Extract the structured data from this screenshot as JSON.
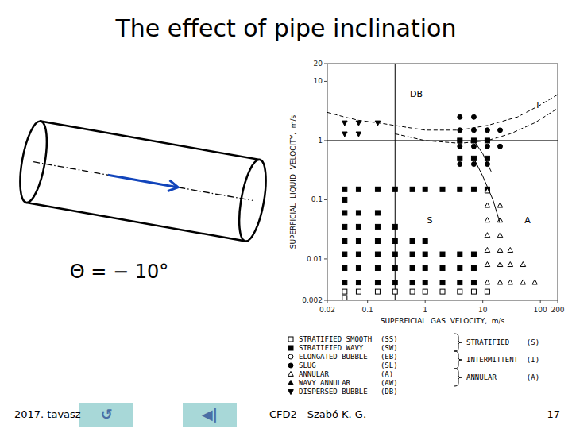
{
  "page": {
    "title": "The effect of pipe inclination",
    "theta_label": "Θ = − 10°",
    "footer_left": "2017. tavasz",
    "footer_center": "CFD2 - Szabó K. G.",
    "footer_right": "17",
    "background_color": "#ffffff",
    "buttons": [
      {
        "label": "↺",
        "color": "#a8d8d8"
      },
      {
        "label": "◀|",
        "color": "#a8d8d8"
      }
    ],
    "button_text_color": "#4a6fa5"
  },
  "chart_data": {
    "type": "scatter",
    "log": true,
    "grid": false,
    "color": "#000000",
    "x_label": "SUPERFICIAL  GAS  VELOCITY,  m/s",
    "y_label": "SUPERFICIAL  LIQUID  VELOCITY,  m/s",
    "xlim": [
      0.02,
      200
    ],
    "ylim": [
      0.002,
      20
    ],
    "xticks": [
      0.02,
      0.1,
      1,
      10,
      100,
      200
    ],
    "yticks": [
      0.002,
      0.01,
      0.1,
      1,
      10,
      20
    ],
    "hlines": [
      1
    ],
    "vlines": [
      0.3
    ],
    "annotations": [
      {
        "text": "DB",
        "x": 0.7,
        "y": 5.5
      },
      {
        "text": "S",
        "x": 1.2,
        "y": 0.04
      },
      {
        "text": "A",
        "x": 60,
        "y": 0.04
      },
      {
        "text": "I",
        "x": 90,
        "y": 3.5
      }
    ],
    "legend_groups": [
      {
        "text": "STRATIFIED    (S)",
        "series": [
          0,
          1
        ]
      },
      {
        "text": "INTERMITTENT  (I)",
        "series": [
          2,
          3
        ]
      },
      {
        "text": "ANNULAR       (A)",
        "series": [
          4,
          5
        ]
      }
    ],
    "series": [
      {
        "name": "STRATIFIED SMOOTH  (SS)",
        "type": "scatter",
        "marker": "square-open",
        "x": [
          0.04,
          0.07,
          0.15,
          0.3,
          0.6,
          1.0,
          2.0,
          4.0,
          7.0,
          12.0,
          0.04
        ],
        "values": [
          0.0028,
          0.0028,
          0.0028,
          0.0028,
          0.0028,
          0.0028,
          0.0028,
          0.0028,
          0.0028,
          0.0028,
          0.0022
        ]
      },
      {
        "name": "STRATIFIED WAVY    (SW)",
        "type": "scatter",
        "marker": "square",
        "x": [
          0.04,
          0.04,
          0.04,
          0.04,
          0.04,
          0.04,
          0.04,
          0.07,
          0.07,
          0.07,
          0.07,
          0.07,
          0.07,
          0.15,
          0.15,
          0.15,
          0.15,
          0.15,
          0.15,
          0.3,
          0.3,
          0.3,
          0.3,
          0.3,
          0.6,
          0.6,
          0.6,
          0.6,
          1.0,
          1.0,
          1.0,
          1.0,
          2.0,
          2.0,
          2.0,
          4.0,
          4.0,
          4.0,
          7.0,
          7.0,
          7.0,
          0.04,
          0.07,
          0.15,
          0.3,
          0.6,
          1.0,
          2.0,
          4.0,
          7.0,
          12.0,
          4.0,
          7.0,
          12.0,
          4.0,
          7.0,
          12.0
        ],
        "values": [
          0.004,
          0.007,
          0.012,
          0.02,
          0.035,
          0.06,
          0.1,
          0.004,
          0.007,
          0.012,
          0.02,
          0.035,
          0.06,
          0.004,
          0.007,
          0.012,
          0.02,
          0.035,
          0.06,
          0.004,
          0.007,
          0.012,
          0.02,
          0.035,
          0.004,
          0.007,
          0.012,
          0.02,
          0.004,
          0.007,
          0.012,
          0.02,
          0.004,
          0.007,
          0.012,
          0.004,
          0.007,
          0.012,
          0.004,
          0.007,
          0.012,
          0.15,
          0.15,
          0.15,
          0.15,
          0.15,
          0.15,
          0.15,
          0.15,
          0.15,
          0.15,
          0.5,
          0.5,
          0.5,
          1.0,
          1.0,
          1.0
        ]
      },
      {
        "name": "ELONGATED BUBBLE   (EB)",
        "type": "scatter",
        "marker": "circle-open",
        "x": [],
        "values": []
      },
      {
        "name": "SLUG               (SL)",
        "type": "scatter",
        "marker": "circle",
        "x": [
          4,
          7,
          12,
          20,
          4,
          7,
          12,
          20,
          4,
          7,
          12,
          4,
          7
        ],
        "values": [
          1.5,
          1.5,
          1.5,
          1.5,
          0.8,
          0.8,
          0.8,
          0.8,
          0.4,
          0.4,
          0.4,
          2.5,
          2.5
        ]
      },
      {
        "name": "ANNULAR            (A) ",
        "type": "scatter",
        "marker": "triangle-open",
        "x": [
          12,
          20,
          30,
          50,
          80,
          12,
          20,
          30,
          50,
          12,
          20,
          30,
          12,
          20,
          12,
          20,
          12,
          20,
          12
        ],
        "values": [
          0.004,
          0.004,
          0.004,
          0.004,
          0.004,
          0.008,
          0.008,
          0.008,
          0.008,
          0.014,
          0.014,
          0.014,
          0.025,
          0.025,
          0.045,
          0.045,
          0.08,
          0.08,
          0.14
        ]
      },
      {
        "name": "WAVY ANNULAR       (AW)",
        "type": "scatter",
        "marker": "triangle",
        "x": [],
        "values": []
      },
      {
        "name": "DISPERSED BUBBLE   (DB)",
        "type": "scatter",
        "marker": "triangle-down",
        "x": [
          0.04,
          0.07,
          0.15,
          0.04,
          0.07
        ],
        "values": [
          2.0,
          2.0,
          2.0,
          1.3,
          1.3
        ]
      },
      {
        "type": "line",
        "line_style": "dashed",
        "x": [
          0.02,
          0.04,
          0.07,
          0.15,
          0.3,
          1,
          4,
          12,
          40,
          100,
          200
        ],
        "values": [
          3.0,
          2.5,
          2.2,
          2.0,
          1.8,
          1.5,
          1.5,
          1.8,
          2.5,
          4.0,
          6.0
        ]
      },
      {
        "type": "line",
        "line_style": "dashed",
        "x": [
          0.3,
          1,
          4,
          12,
          30,
          80,
          200
        ],
        "values": [
          1.3,
          1.0,
          0.9,
          1.0,
          1.3,
          2.0,
          3.5
        ]
      },
      {
        "type": "line",
        "line_style": "solid",
        "x": [
          7,
          10,
          15,
          20
        ],
        "values": [
          0.5,
          0.25,
          0.1,
          0.04
        ]
      },
      {
        "type": "line",
        "line_style": "solid",
        "x": [
          7,
          10,
          14
        ],
        "values": [
          1.0,
          0.6,
          0.3
        ]
      }
    ]
  }
}
